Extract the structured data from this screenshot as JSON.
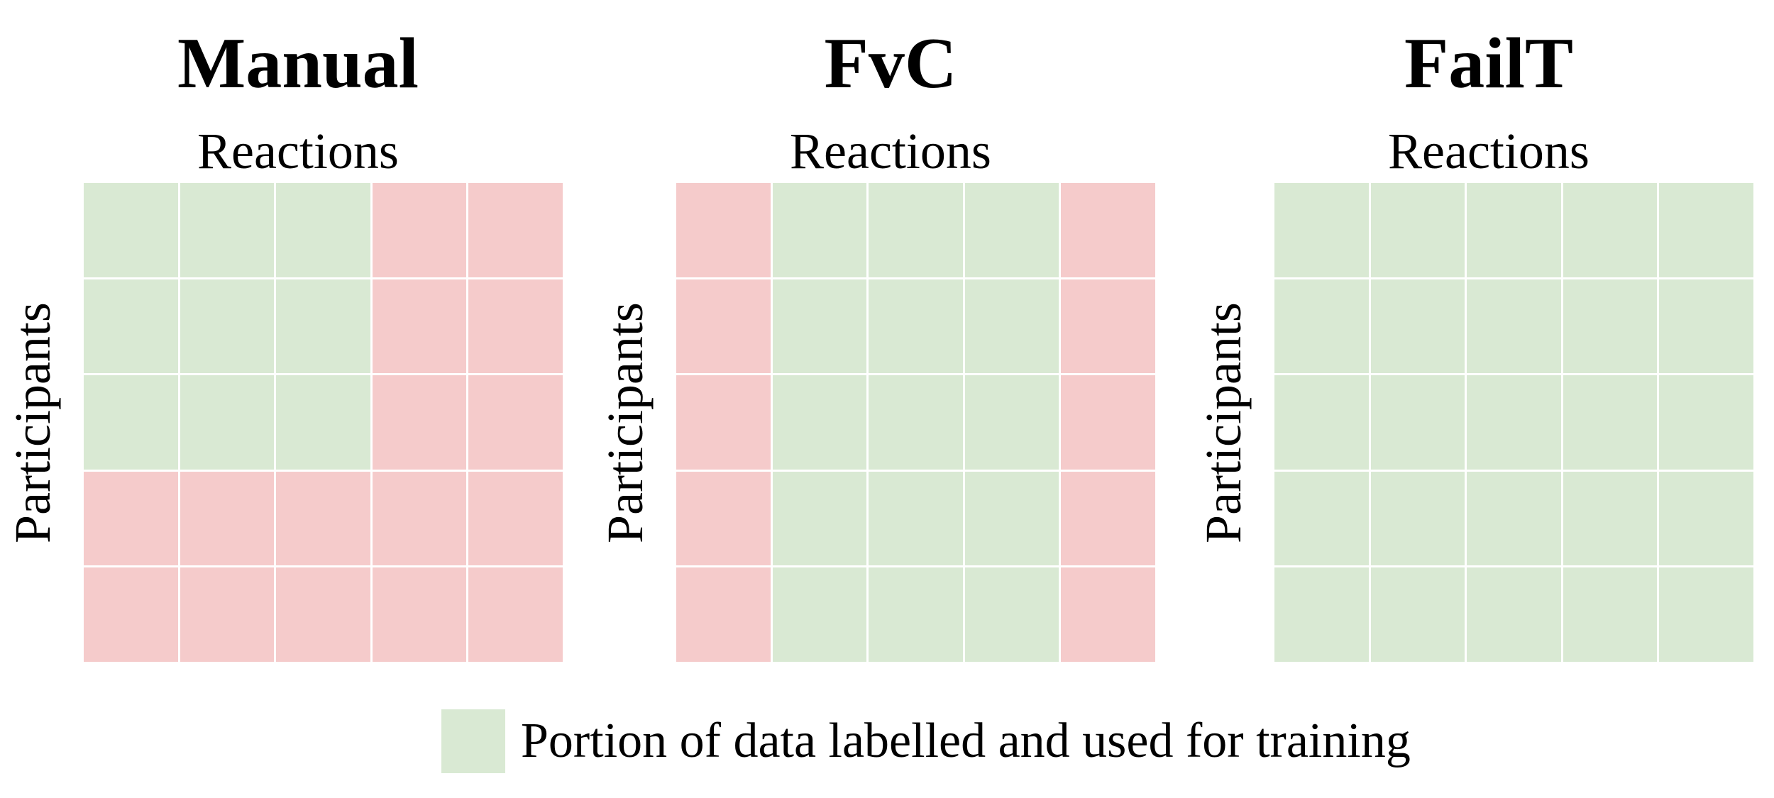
{
  "colors": {
    "labelled": "#d9e9d3",
    "unlabelled": "#f5cbcb"
  },
  "panels": [
    {
      "title": "Manual",
      "col_label": "Reactions",
      "row_label": "Participants",
      "grid": [
        [
          "labelled",
          "labelled",
          "labelled",
          "unlabelled",
          "unlabelled"
        ],
        [
          "labelled",
          "labelled",
          "labelled",
          "unlabelled",
          "unlabelled"
        ],
        [
          "labelled",
          "labelled",
          "labelled",
          "unlabelled",
          "unlabelled"
        ],
        [
          "unlabelled",
          "unlabelled",
          "unlabelled",
          "unlabelled",
          "unlabelled"
        ],
        [
          "unlabelled",
          "unlabelled",
          "unlabelled",
          "unlabelled",
          "unlabelled"
        ]
      ]
    },
    {
      "title": "FvC",
      "col_label": "Reactions",
      "row_label": "Participants",
      "grid": [
        [
          "unlabelled",
          "labelled",
          "labelled",
          "labelled",
          "unlabelled"
        ],
        [
          "unlabelled",
          "labelled",
          "labelled",
          "labelled",
          "unlabelled"
        ],
        [
          "unlabelled",
          "labelled",
          "labelled",
          "labelled",
          "unlabelled"
        ],
        [
          "unlabelled",
          "labelled",
          "labelled",
          "labelled",
          "unlabelled"
        ],
        [
          "unlabelled",
          "labelled",
          "labelled",
          "labelled",
          "unlabelled"
        ]
      ]
    },
    {
      "title": "FailT",
      "col_label": "Reactions",
      "row_label": "Participants",
      "grid": [
        [
          "labelled",
          "labelled",
          "labelled",
          "labelled",
          "labelled"
        ],
        [
          "labelled",
          "labelled",
          "labelled",
          "labelled",
          "labelled"
        ],
        [
          "labelled",
          "labelled",
          "labelled",
          "labelled",
          "labelled"
        ],
        [
          "labelled",
          "labelled",
          "labelled",
          "labelled",
          "labelled"
        ],
        [
          "labelled",
          "labelled",
          "labelled",
          "labelled",
          "labelled"
        ]
      ]
    }
  ],
  "legend": {
    "label": "Portion of data labelled and used for training",
    "swatch": "labelled"
  }
}
